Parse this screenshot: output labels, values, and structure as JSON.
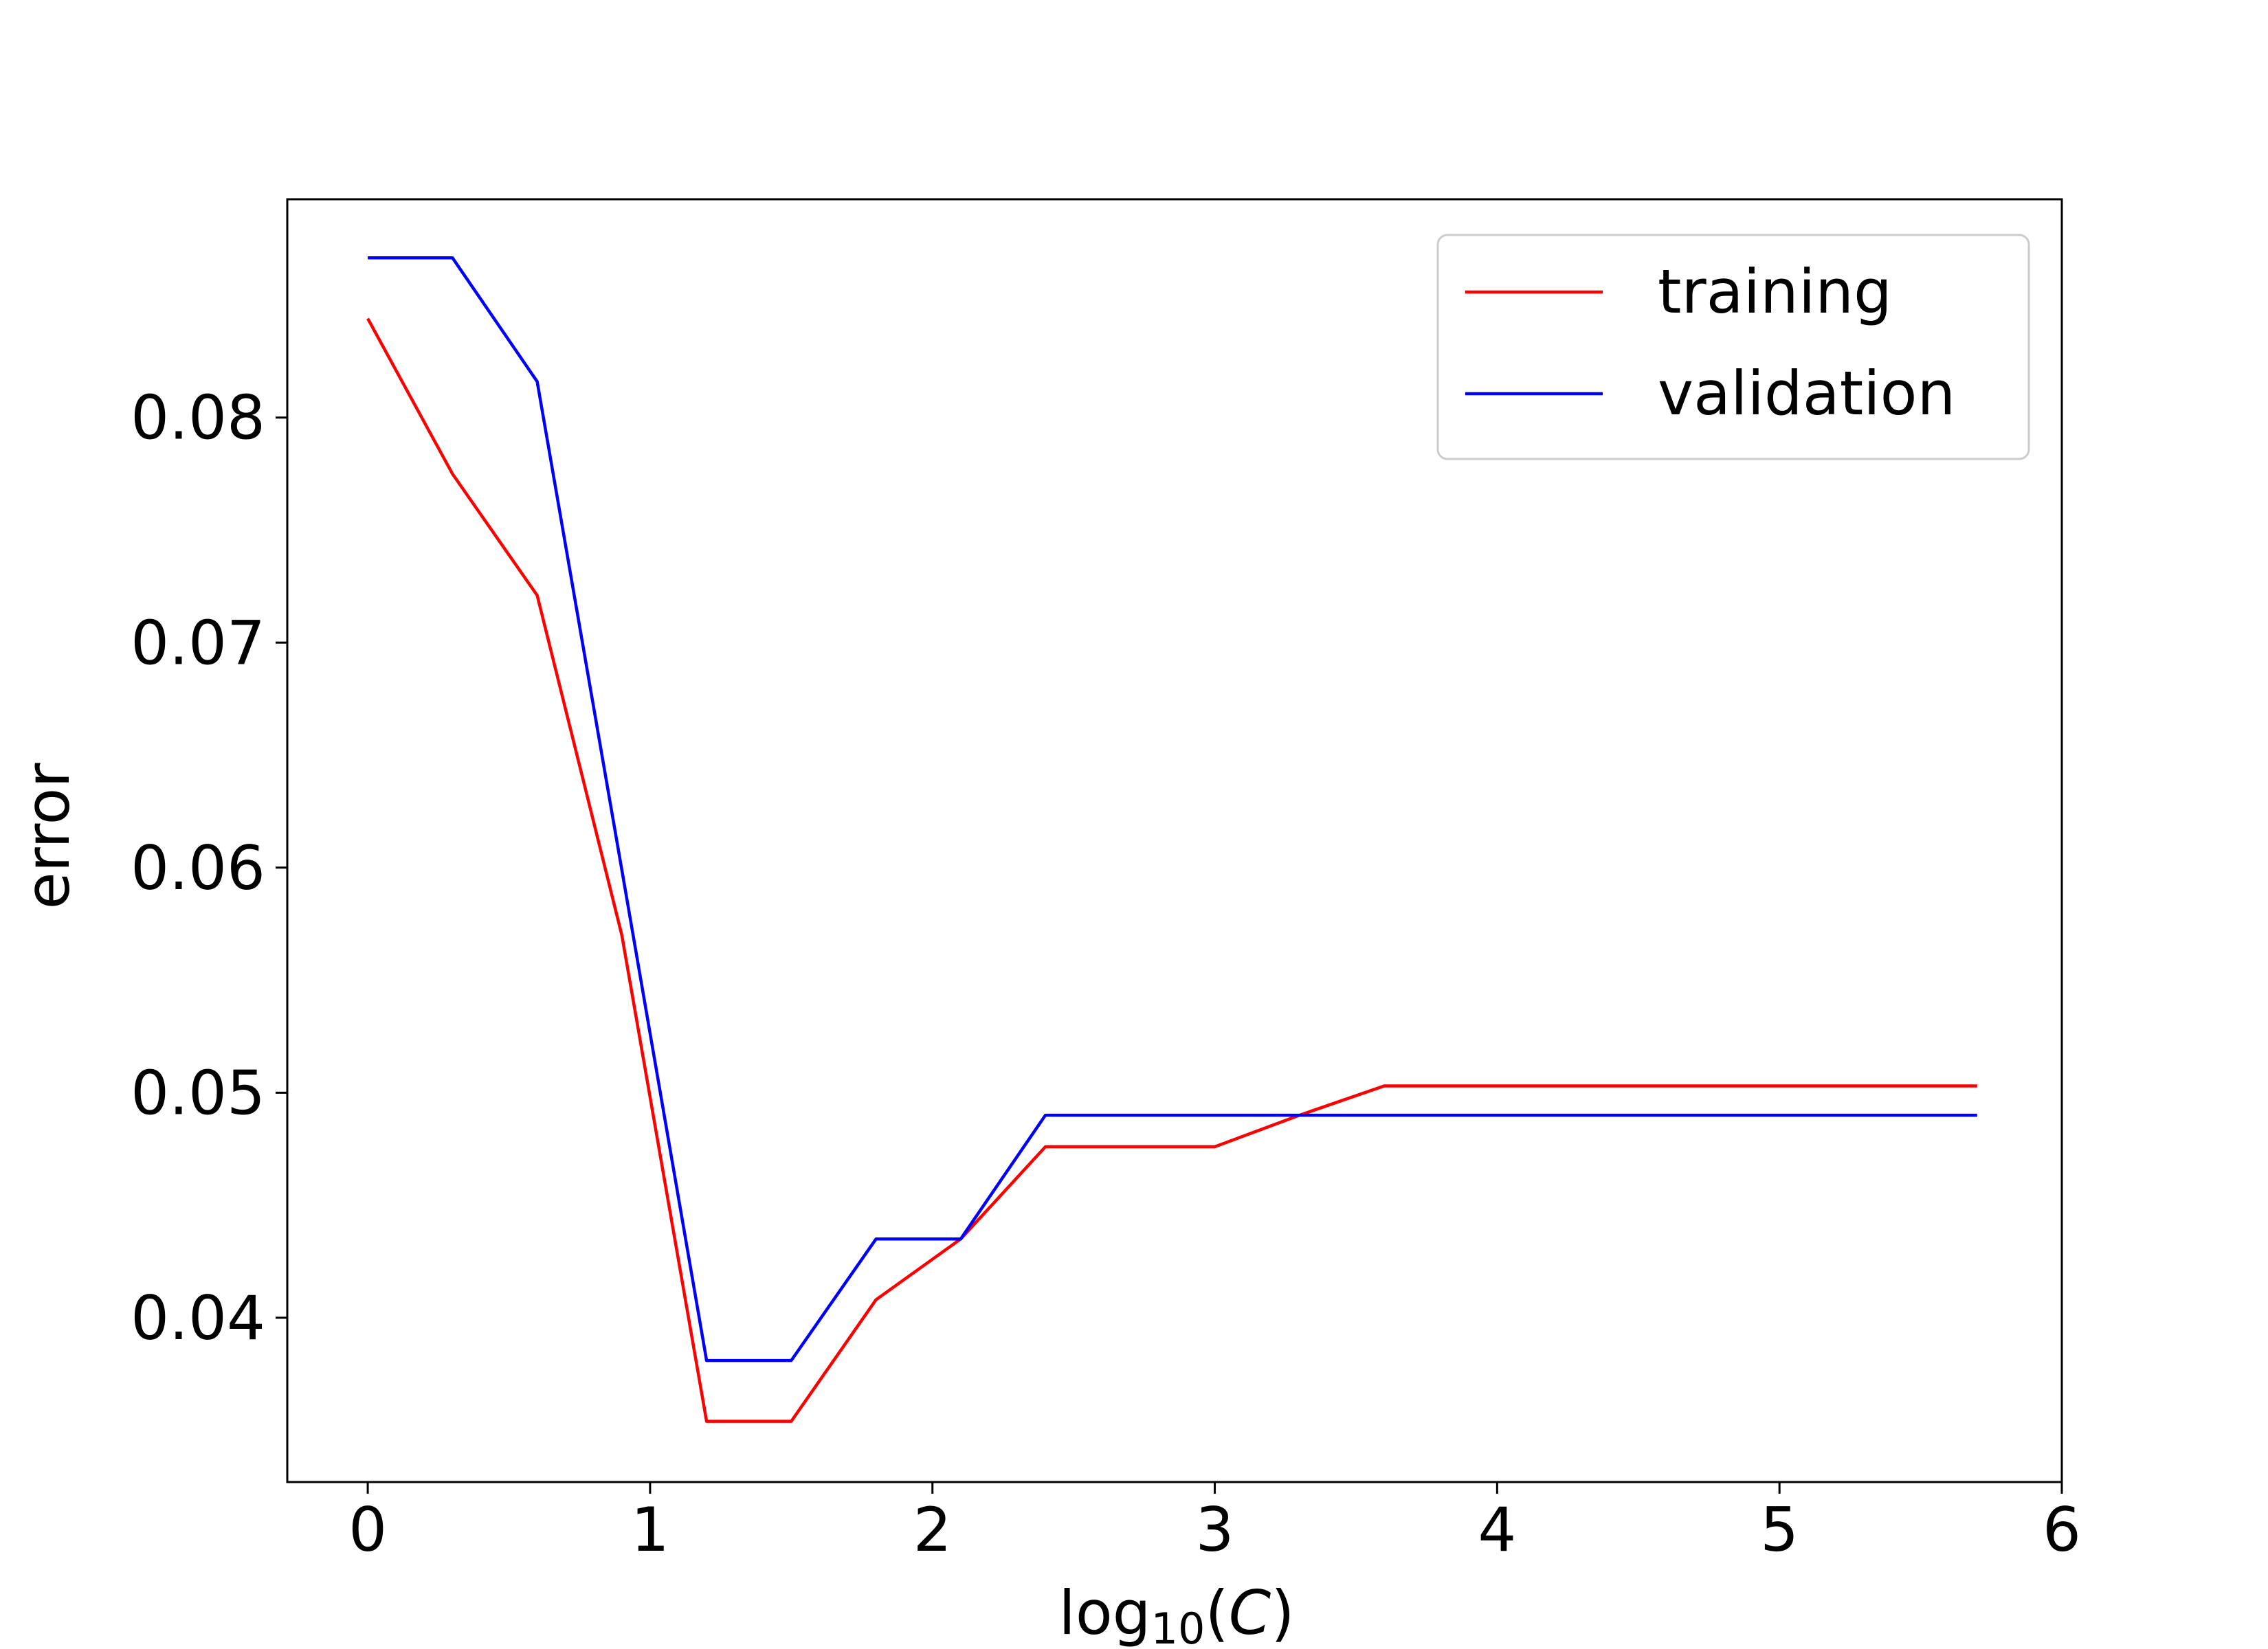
{
  "chart_data": {
    "type": "line",
    "title": "",
    "xlabel": {
      "prefix": "log",
      "subscript": "10",
      "open": "(",
      "var": "C",
      "close": ")"
    },
    "ylabel": "error",
    "xlim": [
      -0.285,
      6.0
    ],
    "ylim": [
      0.0327,
      0.0897
    ],
    "xticks": [
      0,
      1,
      2,
      3,
      4,
      5,
      6
    ],
    "xtick_labels": [
      "0",
      "1",
      "2",
      "3",
      "4",
      "5",
      "6"
    ],
    "yticks": [
      0.04,
      0.05,
      0.06,
      0.07,
      0.08
    ],
    "ytick_labels": [
      "0.04",
      "0.05",
      "0.06",
      "0.07",
      "0.08"
    ],
    "grid": false,
    "legend_position": "top-right",
    "x": [
      0,
      0.3,
      0.6,
      0.9,
      1.2,
      1.5,
      1.8,
      2.1,
      2.4,
      2.7,
      3.0,
      3.3,
      3.6,
      3.9,
      4.2,
      4.5,
      4.8,
      5.1,
      5.4,
      5.7
    ],
    "series": [
      {
        "name": "training",
        "color": "#ff0000",
        "values": [
          0.0844,
          0.0775,
          0.0721,
          0.057,
          0.0354,
          0.0354,
          0.0408,
          0.0435,
          0.0476,
          0.0476,
          0.0476,
          0.049,
          0.0503,
          0.0503,
          0.0503,
          0.0503,
          0.0503,
          0.0503,
          0.0503,
          0.0503
        ]
      },
      {
        "name": "validation",
        "color": "#0000ff",
        "values": [
          0.0871,
          0.0871,
          0.0816,
          0.0599,
          0.0381,
          0.0381,
          0.0435,
          0.0435,
          0.049,
          0.049,
          0.049,
          0.049,
          0.049,
          0.049,
          0.049,
          0.049,
          0.049,
          0.049,
          0.049,
          0.049
        ]
      }
    ]
  }
}
